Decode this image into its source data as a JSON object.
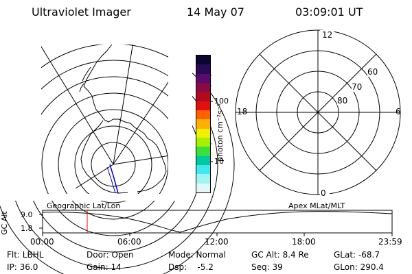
{
  "header": {
    "instrument": "Ultraviolet Imager",
    "date": "14 May 07",
    "time": "03:09:01 UT"
  },
  "colorbar": {
    "unit_label": "photon cm⁻²s⁻¹",
    "ticks": [
      "100",
      "10"
    ],
    "colors": [
      "#0a0630",
      "#2a0a55",
      "#5c0b6b",
      "#8a0a46",
      "#b00a1e",
      "#e01010",
      "#ff6000",
      "#ffb000",
      "#f0f000",
      "#a6f000",
      "#3ce03c",
      "#00c8a0",
      "#40e8f0",
      "#a0f4f4",
      "#e0f8f8"
    ]
  },
  "polar_plot": {
    "mlt_labels": {
      "top": "12",
      "left": "18",
      "right": "6",
      "bottom": "0"
    },
    "lat_labels": [
      "60",
      "70",
      "80"
    ]
  },
  "timeline": {
    "y_axis_label": "GC Alt",
    "y_ticks": [
      "9.0",
      "1.8"
    ],
    "left_title": "Geographic Lat/Lon",
    "right_title": "Apex MLat/MLT",
    "x_ticks": [
      "00:00",
      "06:00",
      "12:00",
      "18:00",
      "23:59"
    ],
    "marker_color": "#ff0000"
  },
  "status": {
    "flt": "Flt: LBHL",
    "door": "Door: Open",
    "mode": "Mode: Normal",
    "gc_alt": "GC Alt: 8.4 Re",
    "glat": "GLat: -68.7",
    "ip": "IP: 36.0",
    "gain": "Gain: 14",
    "dsp": "Dsp:    -5.2",
    "seq": "Seq: 39",
    "glon": "GLon: 290.4"
  }
}
